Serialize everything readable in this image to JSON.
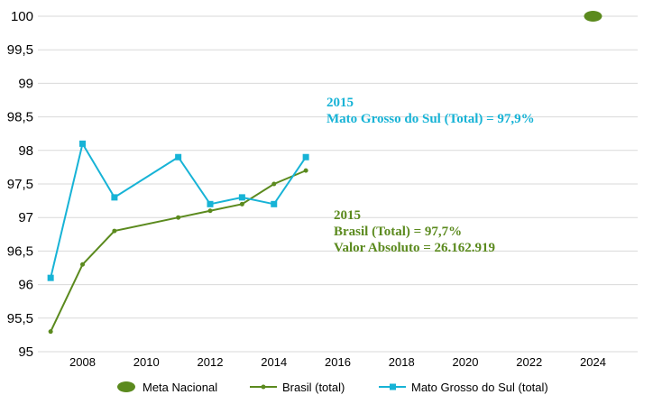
{
  "chart_data": {
    "type": "line",
    "title": "",
    "xlabel": "",
    "ylabel": "",
    "xlim": [
      2006.6,
      2025.4
    ],
    "ylim": [
      95,
      100
    ],
    "y_ticks": [
      "95",
      "95,5",
      "96",
      "96,5",
      "97",
      "97,5",
      "98",
      "98,5",
      "99",
      "99,5",
      "100"
    ],
    "y_tick_values": [
      95,
      95.5,
      96,
      96.5,
      97,
      97.5,
      98,
      98.5,
      99,
      99.5,
      100
    ],
    "x_ticks": [
      "2008",
      "2010",
      "2012",
      "2014",
      "2016",
      "2018",
      "2020",
      "2022",
      "2024"
    ],
    "x_tick_values": [
      2008,
      2010,
      2012,
      2014,
      2016,
      2018,
      2020,
      2022,
      2024
    ],
    "grid": true,
    "series": [
      {
        "name": "Meta Nacional",
        "kind": "target",
        "color": "#5b8a1e",
        "x": [
          2024
        ],
        "values": [
          100
        ]
      },
      {
        "name": "Brasil (total)",
        "kind": "line",
        "color": "#5b8a1e",
        "x": [
          2007,
          2008,
          2009,
          2011,
          2012,
          2013,
          2014,
          2015
        ],
        "values": [
          95.3,
          96.3,
          96.8,
          97.0,
          97.1,
          97.2,
          97.5,
          97.7
        ]
      },
      {
        "name": "Mato Grosso do Sul (total)",
        "kind": "line",
        "color": "#17b3d6",
        "x": [
          2007,
          2008,
          2009,
          2011,
          2012,
          2013,
          2014,
          2015
        ],
        "values": [
          96.1,
          98.1,
          97.3,
          97.9,
          97.2,
          97.3,
          97.2,
          97.9
        ]
      }
    ],
    "annotations": [
      {
        "color": "#17b3d6",
        "lines": [
          "2015",
          "Mato Grosso do Sul (Total) = 97,9%"
        ]
      },
      {
        "color": "#5b8a1e",
        "lines": [
          "2015",
          "Brasil (Total) = 97,7%",
          "Valor Absoluto = 26.162.919"
        ]
      }
    ],
    "legend_position": "bottom"
  }
}
